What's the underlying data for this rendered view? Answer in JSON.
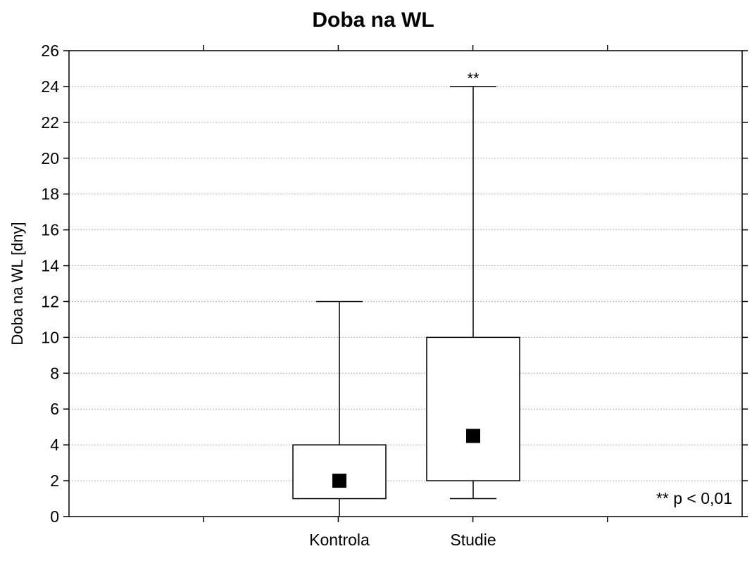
{
  "chart_data": {
    "type": "box",
    "title": "Doba na WL",
    "ylabel": "Doba na WL [dny]",
    "xlabel": "",
    "ylim": [
      0,
      26
    ],
    "y_ticks": [
      "0",
      "2",
      "4",
      "6",
      "8",
      "10",
      "12",
      "14",
      "16",
      "18",
      "20",
      "22",
      "24",
      "26"
    ],
    "grid": true,
    "categories": [
      "Kontrola",
      "Studie"
    ],
    "boxes": [
      {
        "category": "Kontrola",
        "whisker_low": 0,
        "q1": 1,
        "median": 2,
        "q3": 4,
        "whisker_high": 12,
        "annotation": ""
      },
      {
        "category": "Studie",
        "whisker_low": 1,
        "q1": 2,
        "median": 4.5,
        "q3": 10,
        "whisker_high": 24,
        "annotation": "**"
      }
    ],
    "note": "** p < 0,01"
  }
}
